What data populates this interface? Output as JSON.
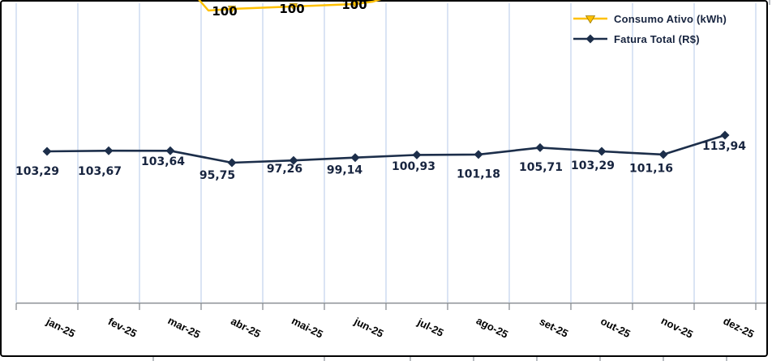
{
  "legend": {
    "position": "top-right",
    "items": [
      {
        "label": "Consumo Ativo (kWh)",
        "marker": "triangle-down-icon",
        "color": "#FFC000"
      },
      {
        "label": "Fatura Total (R$)",
        "marker": "diamond-icon",
        "color": "#1C2E4A"
      }
    ]
  },
  "chart_data": {
    "type": "line",
    "title": "",
    "categories": [
      "jan-25",
      "fev-25",
      "mar-25",
      "abr-25",
      "mai-25",
      "jun-25",
      "jul-25",
      "ago-25",
      "set-25",
      "out-25",
      "nov-25",
      "dez-25"
    ],
    "series": [
      {
        "name": "Consumo Ativo (kWh)",
        "color": "#FFC000",
        "marker": "triangle-down",
        "axis": "secondary",
        "values": [
          null,
          null,
          null,
          100,
          100,
          100,
          null,
          null,
          null,
          null,
          null,
          null
        ],
        "visible_labels": [
          "100",
          "100",
          "100"
        ],
        "note_visible_segment": "line clipped at top of plot; only segment near abr-25..jun-25 visible"
      },
      {
        "name": "Fatura Total (R$)",
        "color": "#1C2E4A",
        "marker": "diamond",
        "axis": "primary",
        "values": [
          103.29,
          103.67,
          103.64,
          95.75,
          97.26,
          99.14,
          100.93,
          101.18,
          105.71,
          103.29,
          101.16,
          113.94
        ],
        "labels": [
          "103,29",
          "103,67",
          "103,64",
          "95,75",
          "97,26",
          "99,14",
          "100,93",
          "101,18",
          "105,71",
          "103,29",
          "101,16",
          "113,94"
        ]
      }
    ],
    "x_axis": {
      "tick_labels_rotation_deg": 27,
      "tick_marks": "outside"
    },
    "y_axis": {
      "visible": false
    },
    "gridlines": "vertical-only",
    "legend_position": "top-right",
    "colors": {
      "gridline": "#CBD9EF",
      "axis_line": "#8A8F94",
      "frame_border": "#000000",
      "data_label": "#17243F",
      "consumo_label": "#000000"
    }
  }
}
